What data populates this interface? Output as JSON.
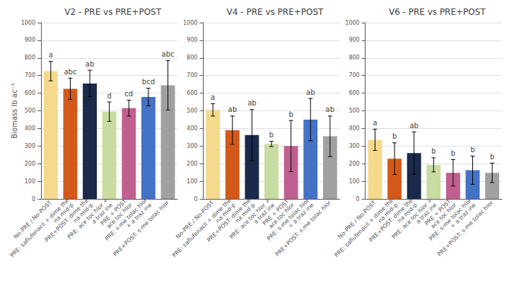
{
  "chart_data": [
    {
      "type": "bar",
      "title": "V2 - PRE vs PRE+POST",
      "categories": [
        "No-PRE / No-POST",
        "PRE: saflufenacil + dime the\nna mid-p",
        "PRE+POST: dime the\nna mid-p",
        "PRE: ace toc hlor +\na traz ine",
        "PRE + POST:\nace toc hlor",
        "PRE: s-me tolac hlor\n+ a traz ine",
        "PRE+POST: s-me tolac hlor"
      ],
      "values": [
        725,
        625,
        655,
        495,
        515,
        578,
        645
      ],
      "errors": [
        55,
        60,
        75,
        55,
        45,
        50,
        140
      ],
      "annotations": [
        "a",
        "abc",
        "ab",
        "d",
        "cd",
        "bcd",
        "abc"
      ],
      "colors": [
        "#F5D98C",
        "#D2591A",
        "#1B2A4A",
        "#C8DBA0",
        "#C06090",
        "#4472C4",
        "#A0A0A0"
      ],
      "ylabel": "Biomass lb ac⁻¹",
      "ylim": [
        0,
        1000
      ],
      "yticks": [
        0,
        100,
        200,
        300,
        400,
        500,
        600,
        700,
        800,
        900,
        1000
      ],
      "grid": true
    },
    {
      "type": "bar",
      "title": "V4 - PRE vs PRE+POST",
      "categories": [
        "No-PRE / No-POST",
        "PRE: saflufenacil + dime the\nna mid-p",
        "PRE+POST: dime the\nna mid-p",
        "PRE: ace toc hlor +\na traz ine",
        "PRE + POST:\nace toc hlor",
        "PRE: s-me tolac hlor\n+ a traz ine",
        "PRE+POST: s-me tolac hlor"
      ],
      "values": [
        505,
        390,
        362,
        312,
        300,
        450,
        355
      ],
      "errors": [
        35,
        80,
        145,
        15,
        145,
        120,
        115
      ],
      "annotations": [
        "a",
        "ab",
        "ab",
        "b",
        "b",
        "ab",
        "ab"
      ],
      "colors": [
        "#F5D98C",
        "#D2591A",
        "#1B2A4A",
        "#C8DBA0",
        "#C06090",
        "#4472C4",
        "#A0A0A0"
      ],
      "ylim": [
        0,
        1000
      ],
      "yticks": [
        0,
        100,
        200,
        300,
        400,
        500,
        600,
        700,
        800,
        900,
        1000
      ],
      "grid": true
    },
    {
      "type": "bar",
      "title": "V6 - PRE vs PRE+POST",
      "categories": [
        "No-PRE / No-POST",
        "PRE: saflufenacil + dime the\nna mid-p",
        "PRE+POST: dime the\nna mid-p",
        "PRE: ace toc hlor +\na traz ine",
        "PRE + POST:\nace toc hlor",
        "PRE: s-me tolac hlor\n+ a traz ine",
        "PRE+POST: s-me tolac hlor"
      ],
      "values": [
        335,
        228,
        260,
        193,
        148,
        163,
        148
      ],
      "errors": [
        60,
        90,
        120,
        40,
        75,
        80,
        55
      ],
      "annotations": [
        "a",
        "b",
        "ab",
        "b",
        "b",
        "b",
        "b"
      ],
      "colors": [
        "#F5D98C",
        "#D2591A",
        "#1B2A4A",
        "#C8DBA0",
        "#C06090",
        "#4472C4",
        "#A0A0A0"
      ],
      "ylim": [
        0,
        1000
      ],
      "yticks": [
        0,
        100,
        200,
        300,
        400,
        500,
        600,
        700,
        800,
        900,
        1000
      ],
      "grid": true
    }
  ]
}
